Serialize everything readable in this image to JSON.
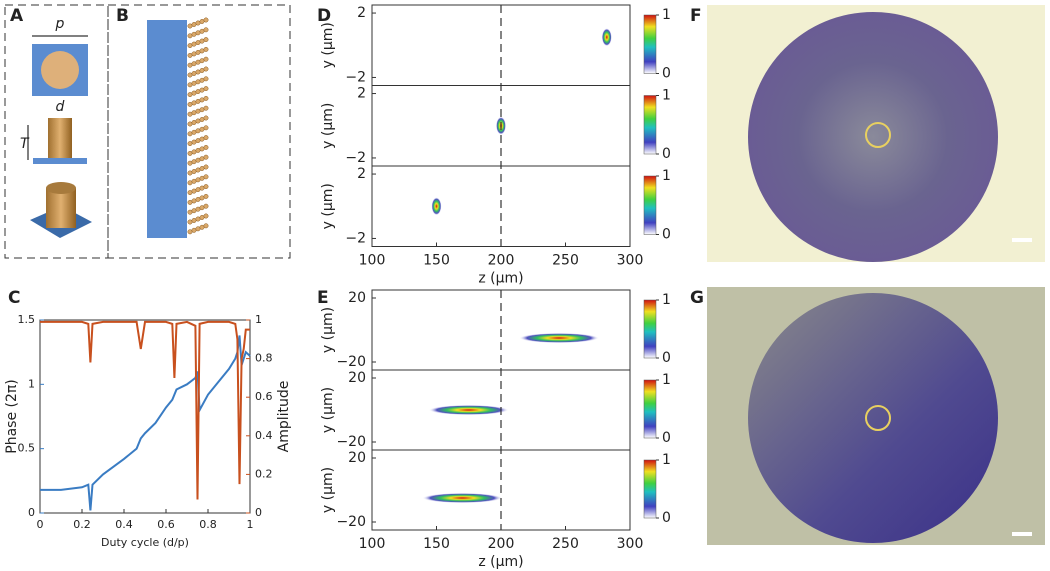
{
  "figure": {
    "panel_letters": [
      "A",
      "B",
      "C",
      "D",
      "E",
      "F",
      "G"
    ],
    "schematic_labels": [
      "p",
      "d",
      "T"
    ]
  },
  "chart_data": [
    {
      "type": "line",
      "xlabel": "Duty cycle (d/p)",
      "ylabel": "Phase (2π)",
      "y2label": "Amplitude",
      "x": [
        0,
        0.1,
        0.2,
        0.23,
        0.24,
        0.25,
        0.3,
        0.4,
        0.46,
        0.48,
        0.5,
        0.55,
        0.6,
        0.63,
        0.64,
        0.65,
        0.7,
        0.74,
        0.75,
        0.76,
        0.8,
        0.85,
        0.9,
        0.93,
        0.94,
        0.95,
        0.96,
        0.97,
        0.98,
        1
      ],
      "series": [
        {
          "name": "Phase (2π)",
          "color": "#3a7cc3",
          "values": [
            0.18,
            0.18,
            0.2,
            0.22,
            0.02,
            0.22,
            0.3,
            0.42,
            0.5,
            0.58,
            0.62,
            0.7,
            0.82,
            0.88,
            0.92,
            0.96,
            1.0,
            1.05,
            1.1,
            0.8,
            0.92,
            1.02,
            1.12,
            1.2,
            1.25,
            1.38,
            1.15,
            1.2,
            1.25,
            1.22
          ]
        },
        {
          "name": "Amplitude",
          "color": "#c8501e",
          "axis": "y2",
          "values": [
            0.99,
            0.99,
            0.99,
            0.98,
            0.78,
            0.98,
            0.99,
            0.99,
            0.99,
            0.85,
            0.99,
            0.99,
            0.99,
            0.98,
            0.7,
            0.98,
            0.99,
            0.97,
            0.07,
            0.98,
            0.99,
            0.99,
            0.99,
            0.98,
            0.9,
            0.15,
            0.8,
            0.85,
            0.95,
            0.95
          ]
        }
      ],
      "xlim": [
        0,
        1
      ],
      "xticks": [
        0,
        0.2,
        0.4,
        0.6,
        0.8,
        1
      ],
      "ylim": [
        0,
        1.5
      ],
      "yticks": [
        0,
        0.5,
        1,
        1.5
      ],
      "y2lim": [
        0,
        1
      ],
      "y2ticks": [
        0,
        0.2,
        0.4,
        0.6,
        0.8,
        1
      ]
    },
    {
      "type": "heatmap",
      "xlabel": "z (μm)",
      "ylabel": "y (μm)",
      "xlim": [
        100,
        300
      ],
      "xticks": [
        100,
        150,
        200,
        250,
        300
      ],
      "ylim": [
        -2.5,
        2.5
      ],
      "yticks": [
        2,
        {
          "value": -2,
          "label": "−2"
        }
      ],
      "colorbar_ticks": [
        0,
        1
      ],
      "guide_z": 200,
      "panels": [
        {
          "x": [
            282
          ],
          "y": [
            0.5
          ]
        },
        {
          "x": [
            200
          ],
          "y": [
            0
          ]
        },
        {
          "x": [
            150
          ],
          "y": [
            0
          ]
        }
      ]
    },
    {
      "type": "heatmap",
      "xlabel": "z (μm)",
      "ylabel": "y (μm)",
      "xlim": [
        100,
        300
      ],
      "xticks": [
        100,
        150,
        200,
        250,
        300
      ],
      "ylim": [
        -25,
        25
      ],
      "yticks": [
        20,
        {
          "value": -20,
          "label": "−20"
        }
      ],
      "colorbar_ticks": [
        0,
        1
      ],
      "guide_z": 200,
      "panels": [
        {
          "x": [
            245
          ],
          "y": [
            -5
          ]
        },
        {
          "x": [
            175
          ],
          "y": [
            0
          ]
        },
        {
          "x": [
            170
          ],
          "y": [
            -5
          ]
        }
      ]
    }
  ]
}
